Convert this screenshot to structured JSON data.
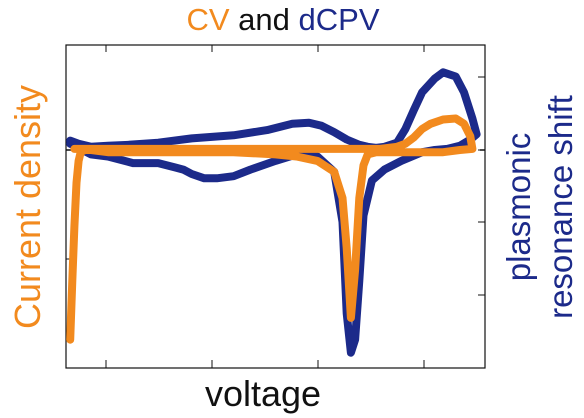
{
  "chart_data": {
    "type": "line",
    "title": {
      "parts": [
        {
          "text": "CV",
          "color": "#f28a1e"
        },
        {
          "text": " and ",
          "color": "#111111"
        },
        {
          "text": "dCPV",
          "color": "#1c2a8a"
        }
      ]
    },
    "xlabel": "voltage",
    "ylabel_left": "Current density",
    "ylabel_right_line1": "plasmonic",
    "ylabel_right_line2": "resonance shift",
    "xlim": [
      0,
      1
    ],
    "ylim": [
      -1,
      1
    ],
    "zero_line": true,
    "grid": false,
    "ticks_labeled": false,
    "colors": {
      "cv": "#f28a1e",
      "dcpv": "#1c2a8a",
      "black": "#111111"
    },
    "series": [
      {
        "key": "dcpv",
        "color": "#1c2a8a",
        "x": [
          0.01,
          0.03,
          0.06,
          0.1,
          0.15,
          0.22,
          0.3,
          0.4,
          0.48,
          0.54,
          0.58,
          0.61,
          0.64,
          0.67,
          0.7,
          0.72,
          0.74,
          0.76,
          0.79,
          0.81,
          0.83,
          0.85,
          0.88,
          0.9,
          0.93,
          0.95,
          0.97,
          0.98,
          0.965,
          0.94,
          0.91,
          0.88,
          0.85,
          0.8,
          0.76,
          0.73,
          0.71,
          0.7,
          0.69,
          0.68,
          0.67,
          0.66,
          0.64,
          0.6,
          0.55,
          0.5,
          0.44,
          0.4,
          0.36,
          0.33,
          0.3,
          0.28,
          0.26,
          0.22,
          0.16,
          0.1,
          0.06,
          0.03,
          0.01
        ],
        "y": [
          0.09,
          0.06,
          0.03,
          0.04,
          0.05,
          0.07,
          0.11,
          0.14,
          0.19,
          0.25,
          0.26,
          0.23,
          0.17,
          0.1,
          0.05,
          0.03,
          0.02,
          0.03,
          0.07,
          0.2,
          0.38,
          0.55,
          0.68,
          0.74,
          0.7,
          0.55,
          0.3,
          0.15,
          0.1,
          0.04,
          0.01,
          0.0,
          -0.01,
          -0.05,
          -0.09,
          -0.14,
          -0.3,
          -0.6,
          -0.87,
          -0.93,
          -0.75,
          -0.33,
          -0.1,
          -0.03,
          -0.02,
          -0.05,
          -0.09,
          -0.12,
          -0.13,
          -0.13,
          -0.11,
          -0.09,
          -0.08,
          -0.06,
          -0.06,
          -0.03,
          -0.02,
          0.02,
          0.06
        ]
      },
      {
        "key": "cv",
        "color": "#f28a1e",
        "x": [
          0.01,
          0.015,
          0.02,
          0.025,
          0.03,
          0.035,
          0.045,
          0.06,
          0.1,
          0.2,
          0.3,
          0.4,
          0.5,
          0.55,
          0.6,
          0.64,
          0.66,
          0.67,
          0.68,
          0.69,
          0.7,
          0.71,
          0.72,
          0.74,
          0.78,
          0.82,
          0.86,
          0.9,
          0.94,
          0.97,
          0.965,
          0.95,
          0.93,
          0.9,
          0.87,
          0.85,
          0.83,
          0.81,
          0.79,
          0.77,
          0.75,
          0.72,
          0.68,
          0.6,
          0.5,
          0.4,
          0.3,
          0.2,
          0.1,
          0.05,
          0.03,
          0.02
        ],
        "y": [
          -0.87,
          -0.6,
          -0.35,
          -0.15,
          -0.05,
          -0.01,
          0.0,
          0.0,
          -0.01,
          -0.01,
          -0.01,
          -0.01,
          -0.02,
          -0.03,
          -0.05,
          -0.1,
          -0.22,
          -0.45,
          -0.77,
          -0.55,
          -0.22,
          -0.07,
          -0.02,
          -0.01,
          -0.01,
          -0.01,
          -0.01,
          -0.01,
          0.0,
          0.01,
          0.13,
          0.25,
          0.3,
          0.29,
          0.25,
          0.2,
          0.12,
          0.06,
          0.03,
          0.02,
          0.01,
          0.01,
          0.01,
          0.01,
          0.01,
          0.01,
          0.01,
          0.01,
          0.01,
          0.01,
          0.01,
          0.01
        ]
      }
    ]
  }
}
